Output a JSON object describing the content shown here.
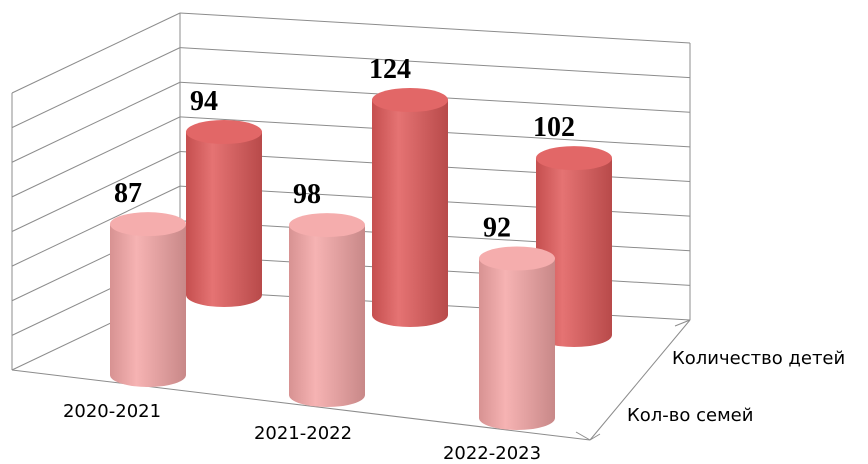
{
  "chart_data": {
    "type": "bar",
    "style": "3d-cylinder",
    "categories": [
      "2020-2021",
      "2021-2022",
      "2022-2023"
    ],
    "series": [
      {
        "name": "Кол-во семей",
        "values": [
          87,
          98,
          92
        ],
        "color": "#f4a6a6"
      },
      {
        "name": "Количество детей",
        "values": [
          94,
          124,
          102
        ],
        "color": "#e05a5a"
      }
    ],
    "title": "",
    "xlabel": "",
    "ylabel": "",
    "ylim": [
      0,
      140
    ],
    "grid": true,
    "legend": "none"
  }
}
